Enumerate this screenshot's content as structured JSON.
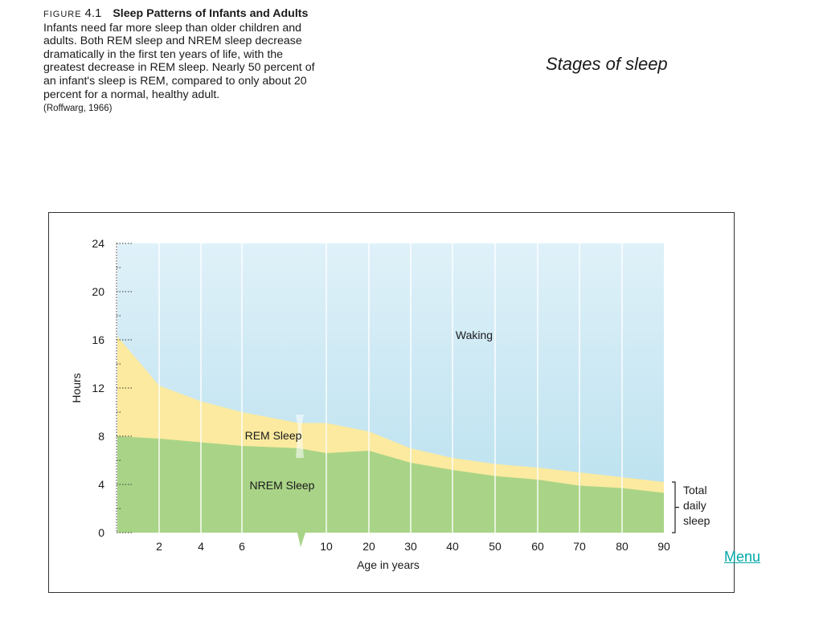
{
  "caption": {
    "figure_label": "FIGURE",
    "figure_number": "4.1",
    "heading": "Sleep Patterns of Infants and Adults",
    "body": "Infants need far more sleep than older children and adults. Both REM sleep and NREM sleep decrease dramatically in the first ten years of life, with the greatest decrease in REM sleep. Nearly 50 percent of an infant's sleep is REM, compared to only about 20 percent for a normal, healthy adult.",
    "source": "(Roffwarg, 1966)"
  },
  "slide_title": "Stages of sleep",
  "menu_label": "Menu",
  "chart_data": {
    "type": "area",
    "ylabel": "Hours",
    "xlabel": "Age in years",
    "ylim": [
      0,
      24
    ],
    "yticks": [
      0,
      4,
      8,
      12,
      16,
      20,
      24
    ],
    "xticks": [
      "2",
      "4",
      "6",
      "10",
      "20",
      "30",
      "40",
      "50",
      "60",
      "70",
      "80",
      "90"
    ],
    "x": [
      "0",
      "2",
      "4",
      "6",
      "8",
      "10",
      "20",
      "30",
      "40",
      "50",
      "60",
      "70",
      "80",
      "90"
    ],
    "series": [
      {
        "name": "NREM Sleep",
        "values": [
          8,
          7.8,
          7.5,
          7.2,
          7,
          6.6,
          6.8,
          5.8,
          5.2,
          4.7,
          4.4,
          3.9,
          3.7,
          3.3
        ]
      },
      {
        "name": "REM Sleep",
        "values": [
          8.3,
          4.4,
          3.4,
          2.8,
          2.1,
          2.5,
          1.6,
          1.2,
          1.0,
          1.0,
          1.0,
          1.1,
          0.9,
          0.9
        ]
      },
      {
        "name": "Waking",
        "values": [
          7.7,
          11.8,
          13.1,
          14,
          14.9,
          14.9,
          15.6,
          17,
          17.8,
          18.3,
          18.6,
          19,
          19.4,
          19.8
        ]
      }
    ],
    "bracket_label": [
      "Total",
      "daily",
      "sleep"
    ],
    "colors": {
      "waking_top": "#dff1f9",
      "waking_bottom": "#b7dfee",
      "rem": "#fbea9f",
      "nrem": "#a9d487"
    },
    "grid": "vertical white lines"
  }
}
